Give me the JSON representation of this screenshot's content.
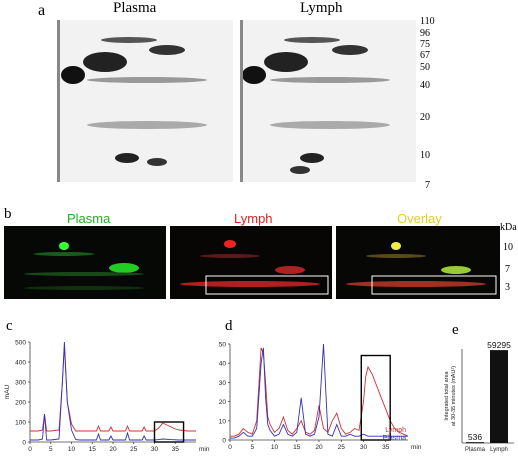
{
  "panel_a": {
    "letter": "a",
    "captions": [
      "Plasma",
      "Lymph"
    ],
    "mw_markers": [
      "110",
      "96",
      "75",
      "67",
      "50",
      "40",
      "20",
      "10",
      "7"
    ]
  },
  "panel_b": {
    "letter": "b",
    "captions": [
      "Plasma",
      "Lymph",
      "Overlay"
    ],
    "caption_colors": [
      "#20b020",
      "#e02020",
      "#e0d020"
    ],
    "unit": "kDa",
    "mw_markers": [
      "10",
      "7",
      "3"
    ]
  },
  "panel_c": {
    "letter": "c",
    "chart_data": {
      "type": "line",
      "ylabel": "mAU",
      "xlabel": "min",
      "xlim": [
        0,
        40
      ],
      "ylim": [
        0,
        500
      ],
      "x_ticks": [
        "0",
        "5",
        "10",
        "15",
        "20",
        "25",
        "30",
        "35"
      ],
      "y_ticks": [
        "0",
        "100",
        "200",
        "300",
        "400",
        "500"
      ],
      "series": [
        {
          "color": "#d03030",
          "x": [
            0,
            2,
            3,
            3.5,
            4,
            5,
            7,
            7.8,
            8.3,
            9,
            10,
            11,
            12,
            14,
            16,
            16.5,
            17,
            18,
            19,
            19.5,
            20,
            22,
            23,
            23.5,
            24,
            26,
            27,
            27.5,
            28,
            30,
            31,
            32,
            33,
            34,
            35,
            36,
            38,
            40
          ],
          "values": [
            55,
            55,
            60,
            140,
            55,
            55,
            60,
            300,
            480,
            200,
            90,
            55,
            55,
            55,
            55,
            80,
            55,
            55,
            55,
            75,
            55,
            55,
            55,
            80,
            55,
            55,
            55,
            75,
            55,
            55,
            70,
            95,
            85,
            75,
            65,
            60,
            55,
            55
          ]
        },
        {
          "color": "#3030c0",
          "x": [
            0,
            2,
            3,
            3.5,
            4,
            5,
            7,
            7.8,
            8.3,
            9,
            10,
            11,
            12,
            14,
            16,
            16.5,
            17,
            18,
            19,
            19.5,
            20,
            22,
            23,
            23.5,
            24,
            26,
            27,
            27.5,
            28,
            30,
            31,
            32,
            34,
            36,
            38,
            40
          ],
          "values": [
            10,
            10,
            15,
            140,
            10,
            10,
            15,
            300,
            500,
            200,
            60,
            12,
            10,
            10,
            10,
            40,
            10,
            10,
            10,
            30,
            10,
            10,
            10,
            45,
            10,
            10,
            10,
            30,
            10,
            10,
            12,
            15,
            12,
            10,
            10,
            10
          ]
        }
      ]
    }
  },
  "panel_d": {
    "letter": "d",
    "chart_data": {
      "type": "line",
      "xlabel": "min",
      "xlim": [
        0,
        40
      ],
      "ylim": [
        0,
        50
      ],
      "x_ticks": [
        "0",
        "5",
        "10",
        "15",
        "20",
        "25",
        "30",
        "35"
      ],
      "y_ticks": [
        "0",
        "10",
        "20",
        "30",
        "40",
        "50"
      ],
      "series": [
        {
          "name": "Lymph",
          "color": "#d03030",
          "x": [
            0,
            1,
            2,
            3,
            4,
            5,
            6,
            7,
            7.5,
            8,
            8.5,
            9,
            10,
            11,
            12,
            13,
            14,
            15,
            16,
            17,
            18,
            19,
            20,
            21,
            22,
            23,
            24,
            25,
            26,
            27,
            28,
            29,
            30,
            30.5,
            31,
            32,
            33,
            34,
            35,
            36,
            37,
            38,
            39,
            40
          ],
          "values": [
            2,
            2,
            3,
            6,
            4,
            3,
            10,
            48,
            45,
            30,
            12,
            8,
            4,
            6,
            12,
            5,
            3,
            6,
            10,
            4,
            3,
            5,
            18,
            6,
            4,
            10,
            14,
            6,
            3,
            4,
            6,
            5,
            20,
            33,
            38,
            34,
            28,
            22,
            16,
            10,
            6,
            4,
            3,
            2
          ]
        },
        {
          "name": "Plasma",
          "color": "#3030c0",
          "x": [
            0,
            1,
            2,
            3,
            4,
            5,
            6,
            7,
            7.5,
            8,
            8.5,
            9,
            10,
            11,
            12,
            13,
            14,
            15,
            16,
            17,
            18,
            19,
            20,
            21,
            22,
            23,
            24,
            25,
            26,
            27,
            28,
            29,
            30,
            31,
            32,
            33,
            34,
            35,
            36,
            37,
            38,
            39,
            40
          ],
          "values": [
            1,
            1,
            2,
            4,
            2,
            2,
            6,
            40,
            48,
            22,
            8,
            5,
            2,
            3,
            8,
            3,
            2,
            4,
            22,
            3,
            2,
            3,
            12,
            50,
            3,
            2,
            8,
            2,
            2,
            3,
            2,
            2,
            3,
            2,
            2,
            2,
            2,
            2,
            2,
            2,
            2,
            2,
            2
          ]
        }
      ]
    }
  },
  "panel_e": {
    "letter": "e",
    "chart_data": {
      "type": "bar",
      "categories": [
        "Plasma",
        "Lymph"
      ],
      "values": [
        536,
        59295
      ],
      "value_labels": [
        "536",
        "59295"
      ],
      "ylabel_line1": "Integrated total area",
      "ylabel_line2": "at 30-35 minutes (mAU²)"
    }
  }
}
